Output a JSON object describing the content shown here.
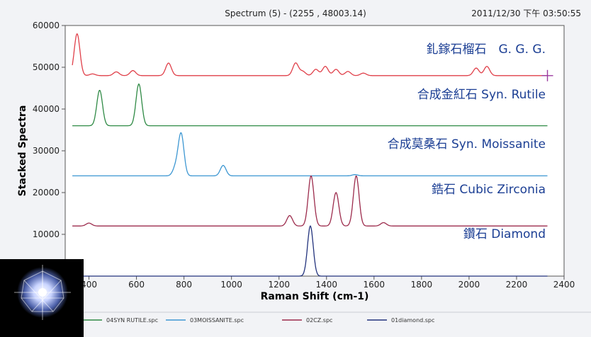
{
  "header": {
    "title": "Spectrum (5) - (2255 , 48003.14)",
    "timestamp": "2011/12/30 下午 03:50:55"
  },
  "chart_data": {
    "type": "line",
    "xlabel": "Raman Shift (cm-1)",
    "ylabel": "Stacked Spectra",
    "xlim": [
      300,
      2400
    ],
    "ylim": [
      0,
      60000
    ],
    "xticks": [
      400,
      600,
      800,
      1000,
      1200,
      1400,
      1600,
      1800,
      2000,
      2200,
      2400
    ],
    "yticks": [
      10000,
      20000,
      30000,
      40000,
      50000,
      60000
    ],
    "grid": false,
    "series": [
      {
        "label": "釓鎵石榴石　G. G. G.",
        "color": "#e0404a",
        "baseline": 48000,
        "peaks": [
          [
            350,
            10000
          ],
          [
            415,
            400
          ],
          [
            515,
            900
          ],
          [
            585,
            1200
          ],
          [
            735,
            3000
          ],
          [
            1270,
            3000
          ],
          [
            1300,
            1000
          ],
          [
            1355,
            1500
          ],
          [
            1395,
            2200
          ],
          [
            1440,
            1500
          ],
          [
            1490,
            1000
          ],
          [
            1555,
            600
          ],
          [
            2030,
            1800
          ],
          [
            2075,
            2200
          ]
        ]
      },
      {
        "label": "合成金紅石 Syn. Rutile",
        "color": "#2f8a45",
        "baseline": 36000,
        "peaks": [
          [
            445,
            8500
          ],
          [
            610,
            10000
          ]
        ]
      },
      {
        "label": "合成莫桑石 Syn. Moissanite",
        "color": "#3d97d2",
        "baseline": 24000,
        "peaks": [
          [
            765,
            2000
          ],
          [
            788,
            10000
          ],
          [
            965,
            2500
          ],
          [
            1520,
            300
          ]
        ]
      },
      {
        "label": "鋯石 Cubic Zirconia",
        "color": "#9c2b4c",
        "baseline": 12000,
        "peaks": [
          [
            400,
            700
          ],
          [
            1245,
            2500
          ],
          [
            1335,
            12000
          ],
          [
            1440,
            8000
          ],
          [
            1525,
            12000
          ],
          [
            1640,
            800
          ]
        ]
      },
      {
        "label": "鑽石 Diamond",
        "color": "#23337d",
        "baseline": 0,
        "peaks": [
          [
            1332,
            12000
          ]
        ]
      }
    ],
    "cursor": {
      "x": 2330,
      "y": 48000
    },
    "legend_items": [
      {
        "text": "04SYN RUTILE.spc",
        "color": "#2f8a45"
      },
      {
        "text": "03MOISSANITE.spc",
        "color": "#3d97d2"
      },
      {
        "text": "02CZ.spc",
        "color": "#9c2b4c"
      },
      {
        "text": "01diamond.spc",
        "color": "#23337d"
      }
    ]
  }
}
